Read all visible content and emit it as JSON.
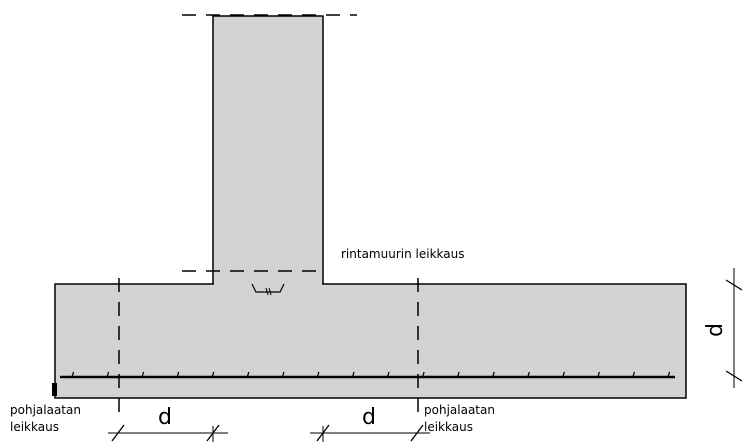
{
  "labels": {
    "wall_section": "rintamuurin leikkaus",
    "left_slab_section_line1": "pohjalaatan",
    "left_slab_section_line2": "leikkaus",
    "right_slab_section_line1": "pohjalaatan",
    "right_slab_section_line2": "leikkaus",
    "dim_left": "d",
    "dim_right": "d",
    "dim_vertical": "d"
  },
  "colors": {
    "concrete_fill": "#d3d3d3",
    "line": "#000000"
  },
  "reinforcement": {
    "stirrup_ticks": 18
  }
}
